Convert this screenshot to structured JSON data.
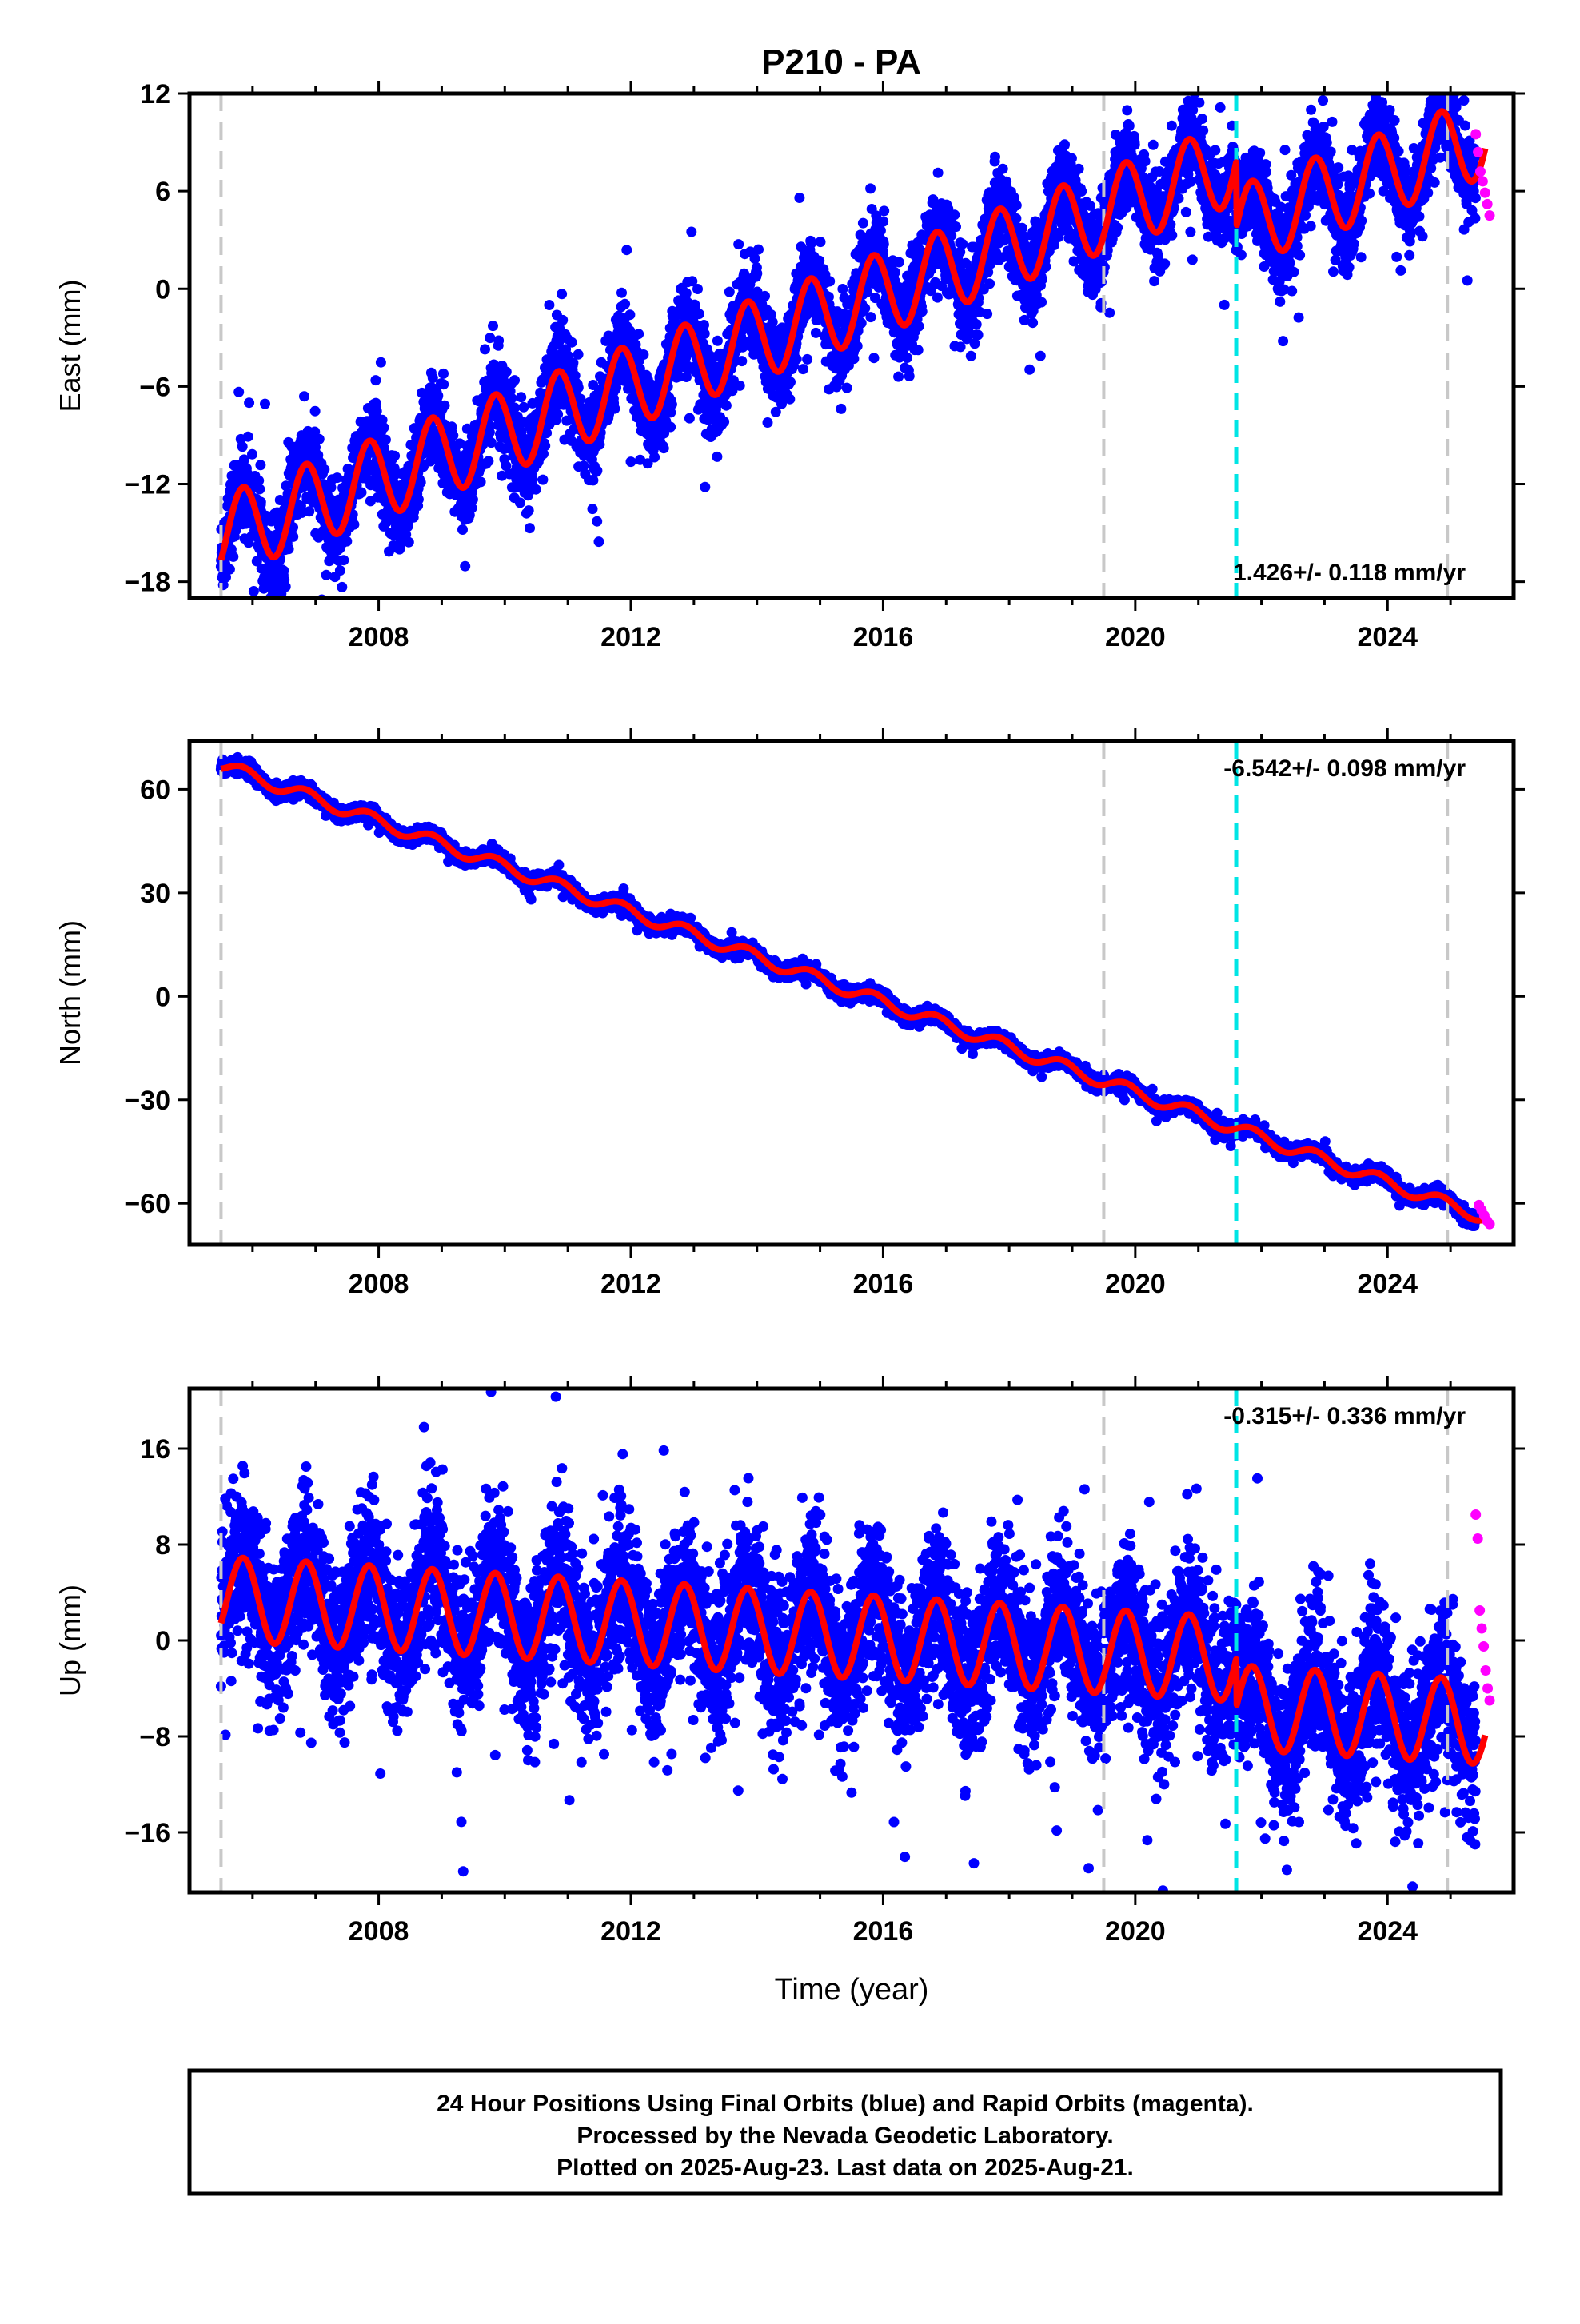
{
  "title": "P210 - PA",
  "colors": {
    "final_orbits": "#0000ff",
    "rapid_orbits": "#ff00ff",
    "model": "#ff0000",
    "equipment_change": "#c8c8c8",
    "earthquake": "#00e5e5"
  },
  "chart_data": [
    {
      "type": "scatter",
      "id": "east",
      "ylabel": "East (mm)",
      "xlim": [
        2005.0,
        2026.0
      ],
      "ylim": [
        -19.0,
        12.0
      ],
      "yticks": [
        12,
        6,
        0,
        -6,
        -12,
        -18
      ],
      "xticks": [
        2008,
        2012,
        2016,
        2020,
        2024
      ],
      "rate_text": "1.426+/- 0.118 mm/yr",
      "rate_position": "bottom-right",
      "trend": {
        "start_year": 2005.5,
        "start_value": -15.2,
        "rate": 1.426,
        "annual_amplitude": 2.5,
        "noise": 1.3
      },
      "offsets": [
        {
          "at": 2021.6,
          "delta": -4.0
        }
      ],
      "vertical_lines": {
        "equipment": [
          2005.5,
          2019.5,
          2024.95
        ],
        "earthquake": [
          2021.6
        ]
      },
      "rapid": {
        "x_start": 2025.4,
        "x_end": 2025.62,
        "y": [
          9.5,
          8.4,
          7.2,
          6.6,
          5.9,
          5.2,
          4.5
        ]
      }
    },
    {
      "type": "scatter",
      "id": "north",
      "ylabel": "North (mm)",
      "xlim": [
        2005.0,
        2026.0
      ],
      "ylim": [
        -72.0,
        74.0
      ],
      "yticks": [
        60,
        30,
        0,
        -30,
        -60
      ],
      "xticks": [
        2008,
        2012,
        2016,
        2020,
        2024
      ],
      "rate_text": "-6.542+/- 0.098 mm/yr",
      "rate_position": "top-right",
      "trend": {
        "start_year": 2005.5,
        "start_value": 67.0,
        "rate": -6.542,
        "annual_amplitude": 1.8,
        "noise": 0.9
      },
      "offsets": [],
      "vertical_lines": {
        "equipment": [
          2005.5,
          2019.5,
          2024.95
        ],
        "earthquake": [
          2021.6
        ]
      },
      "rapid": {
        "x_start": 2025.45,
        "x_end": 2025.62,
        "y": [
          -60.5,
          -62.0,
          -63.5,
          -65.0,
          -66.0
        ]
      }
    },
    {
      "type": "scatter",
      "id": "up",
      "ylabel": "Up (mm)",
      "xlabel": "Time (year)",
      "xlim": [
        2005.0,
        2026.0
      ],
      "ylim": [
        -21.0,
        21.0
      ],
      "yticks": [
        16,
        8,
        0,
        -8,
        -16
      ],
      "xticks": [
        2008,
        2012,
        2016,
        2020,
        2024
      ],
      "rate_text": "-0.315+/- 0.336 mm/yr",
      "rate_position": "top-right",
      "trend": {
        "start_year": 2005.5,
        "start_value": 3.5,
        "rate": -0.315,
        "annual_amplitude": 3.5,
        "noise": 3.2
      },
      "offsets": [
        {
          "at": 2021.6,
          "delta": -4.0
        }
      ],
      "vertical_lines": {
        "equipment": [
          2005.5,
          2019.5,
          2024.95
        ],
        "earthquake": [
          2021.6
        ]
      },
      "rapid": {
        "x_start": 2025.4,
        "x_end": 2025.62,
        "y": [
          10.5,
          8.5,
          2.5,
          1.0,
          -0.5,
          -2.5,
          -4.0,
          -5.0
        ]
      }
    }
  ],
  "footer": {
    "line1": "24 Hour Positions Using Final Orbits (blue) and Rapid Orbits (magenta).",
    "line2": "Processed by the Nevada Geodetic Laboratory.",
    "line3": "Plotted on 2025-Aug-23. Last data on 2025-Aug-21."
  }
}
